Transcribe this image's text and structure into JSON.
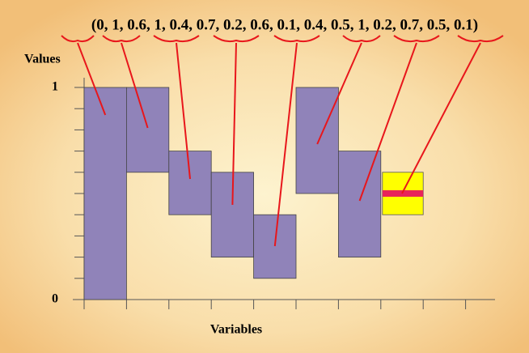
{
  "chart_data": {
    "type": "interval",
    "label": "(0, 1, 0.6, 1, 0.4, 0.7, 0.2, 0.6, 0.1, 0.4, 0.5, 1, 0.2, 0.7, 0.5, 0.1)",
    "values": [
      0,
      1,
      0.6,
      1,
      0.4,
      0.7,
      0.2,
      0.6,
      0.1,
      0.4,
      0.5,
      1,
      0.2,
      0.7,
      0.5,
      0.1
    ],
    "ylabel": "Values",
    "xlabel": "Variables",
    "ylim": [
      0,
      1
    ],
    "yticks": [
      0,
      1
    ],
    "yminor": [
      0.1,
      0.2,
      0.3,
      0.4,
      0.5,
      0.6,
      0.7,
      0.8,
      0.9
    ],
    "color": "#9083b9",
    "highlight_color": "#ffff00",
    "marker_color": "#e8245a",
    "connector_color": "#e8161b"
  }
}
